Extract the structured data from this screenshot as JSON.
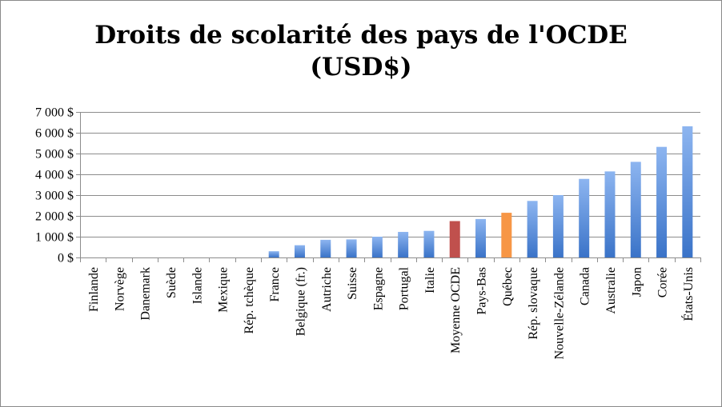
{
  "chart_data": {
    "type": "bar",
    "title": [
      "Droits de scolarité des pays de l'OCDE",
      "(USD$)"
    ],
    "categories": [
      "Finlande",
      "Norvège",
      "Danemark",
      "Suède",
      "Islande",
      "Mexique",
      "Rép. tchèque",
      "France",
      "Belgique (fr.)",
      "Autriche",
      "Suisse",
      "Espagne",
      "Portugal",
      "Italie",
      "Moyenne OCDE",
      "Pays-Bas",
      "Québec",
      "Rép. slovaque",
      "Nouvelle-Zélande",
      "Canada",
      "Australie",
      "Japon",
      "Corée",
      "États-Unis"
    ],
    "values": [
      0,
      0,
      0,
      0,
      0,
      0,
      0,
      300,
      590,
      850,
      870,
      1000,
      1230,
      1280,
      1750,
      1850,
      2150,
      2720,
      3000,
      3780,
      4140,
      4600,
      5320,
      6310
    ],
    "ylim": [
      0,
      7000
    ],
    "yticks": [
      0,
      1000,
      2000,
      3000,
      4000,
      5000,
      6000,
      7000
    ],
    "ytick_labels": [
      "0 $",
      "1 000 $",
      "2 000 $",
      "3 000 $",
      "4 000 $",
      "5 000 $",
      "6 000 $",
      "7 000 $"
    ],
    "xlabel": "",
    "ylabel": "",
    "grid": true,
    "legend": "none",
    "colors": {
      "default_top": "#8DB5F0",
      "default_bottom": "#3A73C8",
      "highlight_oecd": "#C0504D",
      "highlight_quebec": "#F79646",
      "grid": "#8c8c8c",
      "axis": "#8c8c8c"
    },
    "highlights": {
      "Moyenne OCDE": "highlight_oecd",
      "Québec": "highlight_quebec"
    }
  }
}
